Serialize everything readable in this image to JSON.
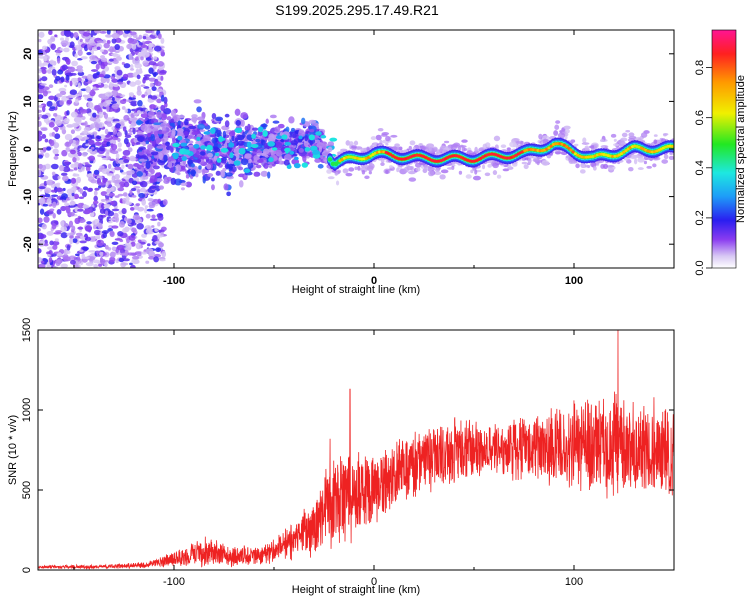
{
  "title": "S199.2025.295.17.49.R21",
  "colors": {
    "snr_line": "#ee2222",
    "frame": "#000000",
    "background": "#ffffff"
  },
  "chart_data": [
    {
      "type": "heatmap",
      "name": "spectrogram",
      "xlabel": "Height of straight line (km)",
      "ylabel": "Frequency (Hz)",
      "xlim": [
        -168,
        150
      ],
      "ylim": [
        -25,
        25
      ],
      "xticks": [
        -100,
        0,
        100
      ],
      "xtick_labels": [
        "-100",
        "0",
        "100"
      ],
      "yticks": [
        -20,
        -10,
        0,
        10,
        20
      ],
      "ytick_labels": [
        "-20",
        "-10",
        "0",
        "10",
        "20"
      ],
      "colorbar": {
        "label": "Normalized spectral amplitude",
        "range": [
          0,
          0.95
        ],
        "ticks": [
          0.0,
          0.2,
          0.4,
          0.6,
          0.8
        ],
        "tick_labels": [
          "0.0",
          "0.2",
          "0.4",
          "0.6",
          "0.8"
        ],
        "colormap": "rainbow (white-violet-blue-cyan-green-yellow-red-magenta)"
      },
      "description_points": {
        "noise_region_x": [
          -168,
          -115
        ],
        "onset_x": -25,
        "ridge_frequency_hz": [
          {
            "x": -100,
            "f": 2
          },
          {
            "x": -75,
            "f": -1
          },
          {
            "x": -50,
            "f": 1
          },
          {
            "x": -30,
            "f": 4
          },
          {
            "x": -20,
            "f": -3
          },
          {
            "x": 0,
            "f": -1
          },
          {
            "x": 25,
            "f": -2
          },
          {
            "x": 50,
            "f": -2
          },
          {
            "x": 75,
            "f": -1
          },
          {
            "x": 90,
            "f": 1
          },
          {
            "x": 110,
            "f": -2
          },
          {
            "x": 130,
            "f": 0
          },
          {
            "x": 150,
            "f": 0
          }
        ]
      }
    },
    {
      "type": "line",
      "name": "snr",
      "xlabel": "Height of straight line (km)",
      "ylabel": "SNR (10 * v/v)",
      "xlim": [
        -168,
        150
      ],
      "ylim": [
        0,
        1500
      ],
      "xticks": [
        -100,
        0,
        100
      ],
      "xtick_labels": [
        "-100",
        "0",
        "100"
      ],
      "yticks": [
        0,
        500,
        1000,
        1500
      ],
      "ytick_labels": [
        "0",
        "500",
        "1000",
        "1500"
      ],
      "envelope": [
        {
          "x": -168,
          "mean": 18,
          "spread": 12
        },
        {
          "x": -140,
          "mean": 20,
          "spread": 14
        },
        {
          "x": -115,
          "mean": 30,
          "spread": 20
        },
        {
          "x": -100,
          "mean": 70,
          "spread": 50
        },
        {
          "x": -85,
          "mean": 120,
          "spread": 110
        },
        {
          "x": -70,
          "mean": 85,
          "spread": 70
        },
        {
          "x": -55,
          "mean": 95,
          "spread": 70
        },
        {
          "x": -40,
          "mean": 180,
          "spread": 130
        },
        {
          "x": -28,
          "mean": 280,
          "spread": 220
        },
        {
          "x": -22,
          "mean": 430,
          "spread": 330
        },
        {
          "x": -10,
          "mean": 470,
          "spread": 300
        },
        {
          "x": 0,
          "mean": 520,
          "spread": 240
        },
        {
          "x": 15,
          "mean": 620,
          "spread": 230
        },
        {
          "x": 30,
          "mean": 720,
          "spread": 240
        },
        {
          "x": 45,
          "mean": 760,
          "spread": 230
        },
        {
          "x": 60,
          "mean": 760,
          "spread": 180
        },
        {
          "x": 75,
          "mean": 760,
          "spread": 230
        },
        {
          "x": 90,
          "mean": 760,
          "spread": 280
        },
        {
          "x": 105,
          "mean": 770,
          "spread": 330
        },
        {
          "x": 120,
          "mean": 780,
          "spread": 380
        },
        {
          "x": 135,
          "mean": 740,
          "spread": 340
        },
        {
          "x": 150,
          "mean": 740,
          "spread": 300
        }
      ],
      "peaks": [
        {
          "x": -12,
          "y": 1130
        },
        {
          "x": -22,
          "y": 820
        },
        {
          "x": 122,
          "y": 1500
        },
        {
          "x": 140,
          "y": 1080
        },
        {
          "x": 100,
          "y": 1060
        }
      ]
    }
  ]
}
